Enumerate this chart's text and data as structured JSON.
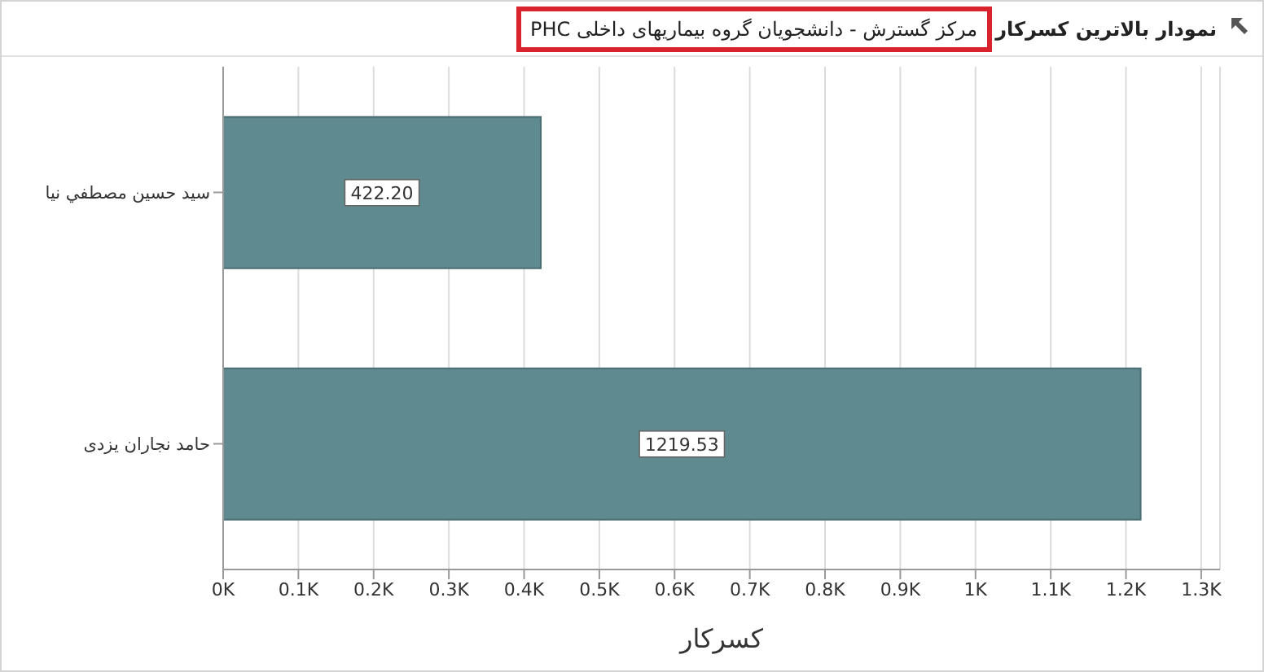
{
  "chart_data": {
    "type": "bar",
    "orientation": "horizontal",
    "title": "نمودار بالاترین کسرکار",
    "subtitle": "مرکز گسترش - دانشجویان گروه بیماریهای داخلی PHC",
    "xlabel": "کسرکار",
    "categories": [
      "سيد حسين  مصطفي نيا",
      "حامد نجاران يزدی"
    ],
    "values": [
      422.2,
      1219.53
    ],
    "value_labels": [
      "422.20",
      "1219.53"
    ],
    "color": "#5f8a90",
    "xlim": [
      0,
      1325
    ],
    "xticks": [
      {
        "value": 0,
        "label": "0K"
      },
      {
        "value": 100,
        "label": "0.1K"
      },
      {
        "value": 200,
        "label": "0.2K"
      },
      {
        "value": 300,
        "label": "0.3K"
      },
      {
        "value": 400,
        "label": "0.4K"
      },
      {
        "value": 500,
        "label": "0.5K"
      },
      {
        "value": 600,
        "label": "0.6K"
      },
      {
        "value": 700,
        "label": "0.7K"
      },
      {
        "value": 800,
        "label": "0.8K"
      },
      {
        "value": 900,
        "label": "0.9K"
      },
      {
        "value": 1000,
        "label": "1K"
      },
      {
        "value": 1100,
        "label": "1.1K"
      },
      {
        "value": 1200,
        "label": "1.2K"
      },
      {
        "value": 1300,
        "label": "1.3K"
      }
    ],
    "grid": "x",
    "legend": false
  }
}
